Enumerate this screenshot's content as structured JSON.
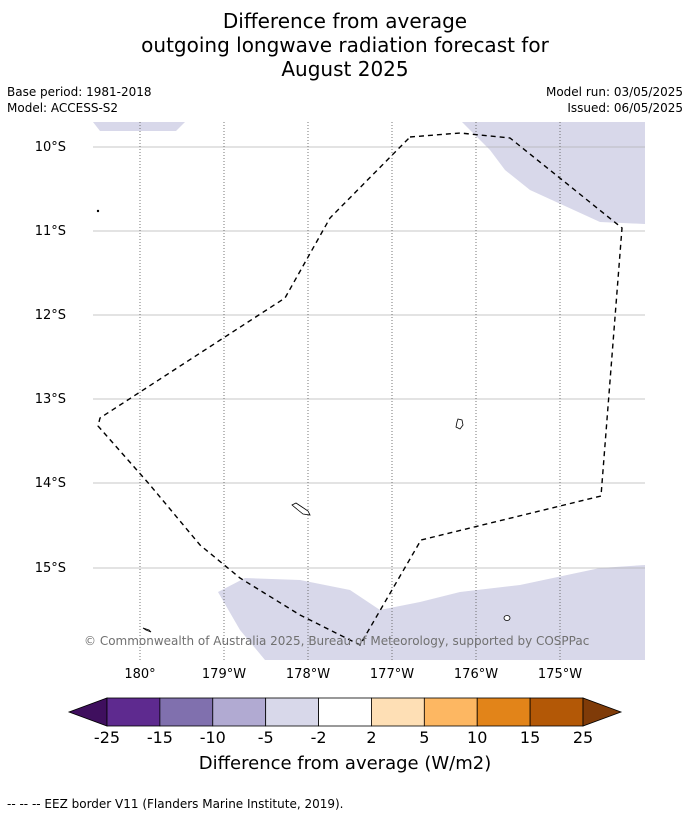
{
  "title": {
    "line1": "Difference from average",
    "line2": "outgoing longwave radiation forecast for",
    "line3": "August 2025"
  },
  "meta": {
    "base_period": "Base period: 1981-2018",
    "model": "Model: ACCESS-S2",
    "model_run": "Model run: 03/05/2025",
    "issued": "Issued: 06/05/2025"
  },
  "map": {
    "lat_labels": [
      "10°S",
      "11°S",
      "12°S",
      "13°S",
      "14°S",
      "15°S"
    ],
    "lon_labels": [
      "180°",
      "179°W",
      "178°W",
      "177°W",
      "176°W",
      "175°W"
    ],
    "copyright": "© Commonwealth of Australia 2025, Bureau of Meteorology, supported by COSPPac",
    "anomaly_fill_color": "#d8d8ea"
  },
  "colorbar": {
    "ticks": [
      "-25",
      "-15",
      "-10",
      "-5",
      "-2",
      "2",
      "5",
      "10",
      "15",
      "25"
    ],
    "colors": [
      "#3f0f5e",
      "#5e2a8f",
      "#8070ae",
      "#b1aad2",
      "#d8d8ea",
      "#ffffff",
      "#fedfb5",
      "#fdb762",
      "#e28419",
      "#b35806",
      "#7f3b08"
    ],
    "title": "Difference from average (W/m2)"
  },
  "footnote": "--  --  -- EEZ border V11 (Flanders Marine Institute, 2019)."
}
